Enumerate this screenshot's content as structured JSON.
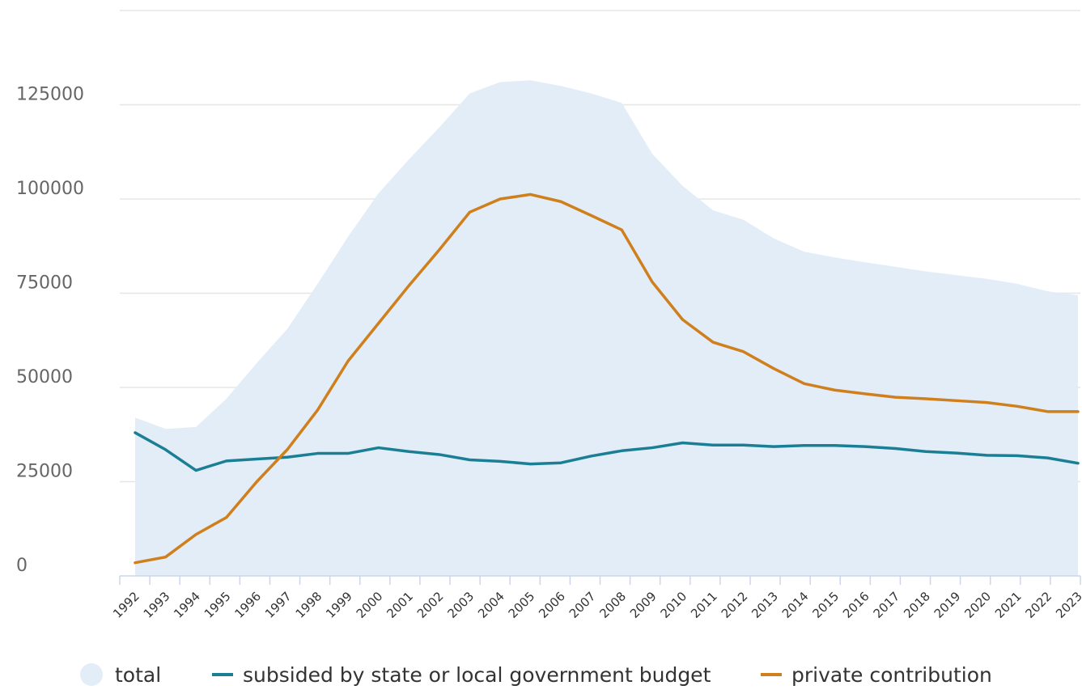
{
  "chart_data": {
    "type": "line",
    "title": "",
    "xlabel": "",
    "ylabel": "",
    "ylim": [
      0,
      150000
    ],
    "y_ticks": [
      "0",
      "25000",
      "50000",
      "75000",
      "100000",
      "125000"
    ],
    "grid": true,
    "legend_position": "bottom",
    "categories": [
      "1992",
      "1993",
      "1994",
      "1995",
      "1996",
      "1997",
      "1998",
      "1999",
      "2000",
      "2001",
      "2002",
      "2003",
      "2004",
      "2005",
      "2006",
      "2007",
      "2008",
      "2009",
      "2010",
      "2011",
      "2012",
      "2013",
      "2014",
      "2015",
      "2016",
      "2017",
      "2018",
      "2019",
      "2020",
      "2021",
      "2022",
      "2023"
    ],
    "series": [
      {
        "name": "total",
        "kind": "area",
        "color": "#e3edf8",
        "values": [
          42000,
          39000,
          39500,
          47000,
          56500,
          65500,
          77500,
          90000,
          101500,
          110500,
          119000,
          128000,
          131000,
          131500,
          130000,
          128000,
          125500,
          112000,
          103500,
          97000,
          94500,
          89500,
          86000,
          84500,
          83200,
          82000,
          80800,
          79800,
          78800,
          77500,
          75500,
          74500
        ]
      },
      {
        "name": "subsided by state or local government budget",
        "kind": "line",
        "color": "#1a7f94",
        "values": [
          38000,
          33500,
          28000,
          30500,
          31000,
          31500,
          32500,
          32500,
          34000,
          33000,
          32200,
          30800,
          30400,
          29700,
          30000,
          31800,
          33200,
          34000,
          35300,
          34700,
          34700,
          34300,
          34600,
          34600,
          34300,
          33800,
          33000,
          32600,
          32000,
          31900,
          31300,
          29900
        ]
      },
      {
        "name": "private contribution",
        "kind": "line",
        "color": "#cf7f1c",
        "values": [
          3500,
          5000,
          11000,
          15500,
          25000,
          33500,
          44000,
          57000,
          67000,
          77000,
          86500,
          96500,
          100000,
          101200,
          99300,
          95600,
          91800,
          78000,
          68000,
          62000,
          59500,
          55000,
          51000,
          49300,
          48300,
          47400,
          47000,
          46500,
          46000,
          45000,
          43600,
          43600
        ]
      }
    ]
  }
}
